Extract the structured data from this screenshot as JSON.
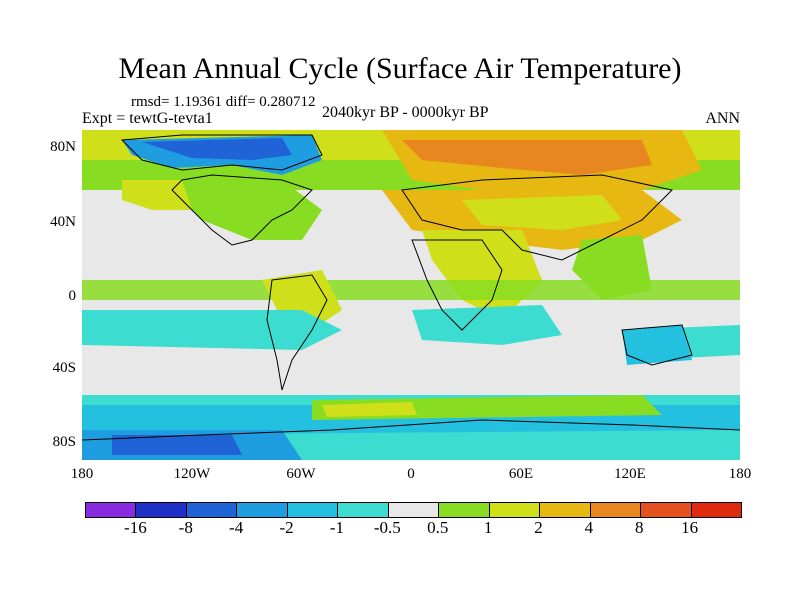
{
  "title": "Mean Annual Cycle (Surface Air Temperature)",
  "stats": "rmsd= 1.19361 diff= 0.280712",
  "experiment": "Expt = tewtG-tevta1",
  "period": "2040kyr BP - 0000kyr BP",
  "season": "ANN",
  "y_axis": [
    "80N",
    "40N",
    "0",
    "40S",
    "80S"
  ],
  "x_axis": [
    "180",
    "120W",
    "60W",
    "0",
    "60E",
    "120E",
    "180"
  ],
  "colorbar": {
    "colors": [
      "#8a2be2",
      "#1f2fc8",
      "#1f63d6",
      "#1e9ee0",
      "#24c0df",
      "#3cdcd0",
      "#e8e8e8",
      "#88dd22",
      "#cfe01a",
      "#e8b812",
      "#e8861f",
      "#e5521f",
      "#e02a10"
    ],
    "labels": [
      "-16",
      "-8",
      "-4",
      "-2",
      "-1",
      "-0.5",
      "0.5",
      "1",
      "2",
      "4",
      "8",
      "16"
    ]
  }
}
